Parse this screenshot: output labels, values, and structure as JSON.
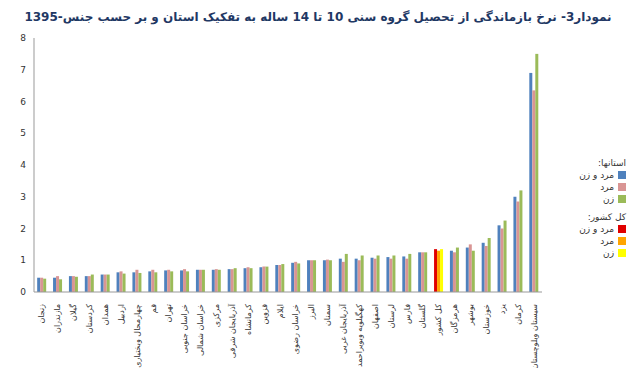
{
  "chart_data": {
    "type": "bar",
    "title": "نمودار3- نرخ بازماندگی از تحصیل گروه سنی 10 تا 14 ساله به تفکیک استان و بر حسب جنس-1395",
    "categories": [
      "زنجان",
      "مازندران",
      "گیلان",
      "کردستان",
      "همدان",
      "اردبیل",
      "چهارمحال وبختیاری",
      "قم",
      "تهران",
      "خراسان جنوبی",
      "خراسان شمالی",
      "مرکزی",
      "آذربایجان شرقی",
      "کرمانشاه",
      "قزوین",
      "ایلام",
      "خراسان رضوی",
      "البرز",
      "سمنان",
      "آذربایجان غربی",
      "کهگیلویه وبویراحمد",
      "اصفهان",
      "لرستان",
      "فارس",
      "گلستان",
      "کل کشور",
      "هرمزگان",
      "بوشهر",
      "خوزستان",
      "یزد",
      "کرمان",
      "سیستان وبلوچستان"
    ],
    "series": [
      {
        "name": "مرد و زن",
        "color": "#4f81bd",
        "colors": [
          "#4f81bd",
          "#4f81bd",
          "#4f81bd",
          "#4f81bd",
          "#4f81bd",
          "#4f81bd",
          "#4f81bd",
          "#4f81bd",
          "#4f81bd",
          "#4f81bd",
          "#4f81bd",
          "#4f81bd",
          "#4f81bd",
          "#4f81bd",
          "#4f81bd",
          "#4f81bd",
          "#4f81bd",
          "#4f81bd",
          "#4f81bd",
          "#4f81bd",
          "#4f81bd",
          "#4f81bd",
          "#4f81bd",
          "#4f81bd",
          "#4f81bd",
          "#e00000",
          "#4f81bd",
          "#4f81bd",
          "#4f81bd",
          "#4f81bd",
          "#4f81bd",
          "#4f81bd"
        ],
        "values": [
          0.45,
          0.45,
          0.5,
          0.5,
          0.55,
          0.62,
          0.62,
          0.65,
          0.68,
          0.68,
          0.7,
          0.7,
          0.72,
          0.75,
          0.78,
          0.85,
          0.92,
          1.0,
          1.0,
          1.05,
          1.05,
          1.08,
          1.1,
          1.12,
          1.25,
          1.35,
          1.3,
          1.4,
          1.55,
          2.1,
          3.0,
          6.9
        ]
      },
      {
        "name": "مرد",
        "color": "#d99594",
        "colors": [
          "#d99594",
          "#d99594",
          "#d99594",
          "#d99594",
          "#d99594",
          "#d99594",
          "#d99594",
          "#d99594",
          "#d99594",
          "#d99594",
          "#d99594",
          "#d99594",
          "#d99594",
          "#d99594",
          "#d99594",
          "#d99594",
          "#d99594",
          "#d99594",
          "#d99594",
          "#d99594",
          "#d99594",
          "#d99594",
          "#d99594",
          "#d99594",
          "#d99594",
          "#ffa500",
          "#d99594",
          "#d99594",
          "#d99594",
          "#d99594",
          "#d99594",
          "#d99594"
        ],
        "values": [
          0.45,
          0.5,
          0.5,
          0.5,
          0.55,
          0.65,
          0.7,
          0.7,
          0.7,
          0.72,
          0.7,
          0.72,
          0.72,
          0.78,
          0.8,
          0.85,
          0.95,
          1.0,
          1.02,
          0.95,
          1.0,
          1.05,
          1.05,
          1.05,
          1.25,
          1.3,
          1.25,
          1.5,
          1.45,
          2.0,
          2.85,
          6.35
        ]
      },
      {
        "name": "زن",
        "color": "#9bbb59",
        "colors": [
          "#9bbb59",
          "#9bbb59",
          "#9bbb59",
          "#9bbb59",
          "#9bbb59",
          "#9bbb59",
          "#9bbb59",
          "#9bbb59",
          "#9bbb59",
          "#9bbb59",
          "#9bbb59",
          "#9bbb59",
          "#9bbb59",
          "#9bbb59",
          "#9bbb59",
          "#9bbb59",
          "#9bbb59",
          "#9bbb59",
          "#9bbb59",
          "#9bbb59",
          "#9bbb59",
          "#9bbb59",
          "#9bbb59",
          "#9bbb59",
          "#9bbb59",
          "#ffff00",
          "#9bbb59",
          "#9bbb59",
          "#9bbb59",
          "#9bbb59",
          "#9bbb59",
          "#9bbb59"
        ],
        "values": [
          0.42,
          0.4,
          0.48,
          0.55,
          0.55,
          0.58,
          0.6,
          0.62,
          0.65,
          0.65,
          0.7,
          0.7,
          0.75,
          0.75,
          0.8,
          0.88,
          0.9,
          1.0,
          1.0,
          1.2,
          1.15,
          1.15,
          1.15,
          1.2,
          1.25,
          1.35,
          1.4,
          1.3,
          1.7,
          2.25,
          3.2,
          7.5
        ]
      }
    ],
    "annotations": [
      "استانها:",
      "کل کشور:"
    ],
    "ylim": [
      0,
      8
    ],
    "yticks": [
      0,
      1,
      2,
      3,
      4,
      5,
      6,
      7,
      8
    ],
    "grid": false,
    "legend": "right"
  }
}
